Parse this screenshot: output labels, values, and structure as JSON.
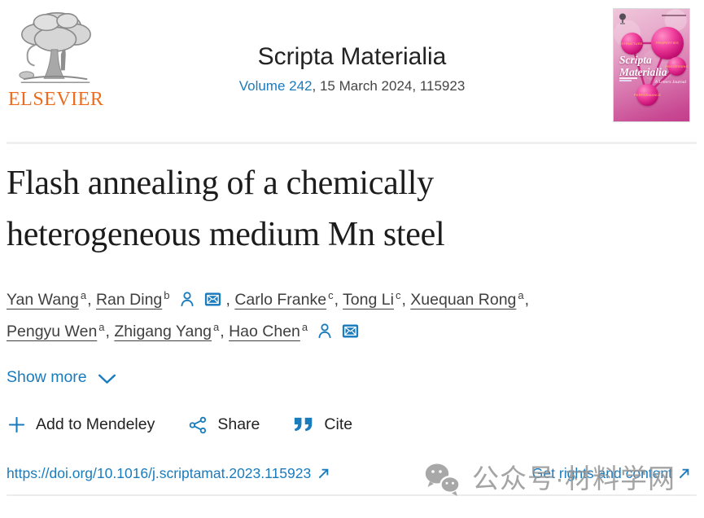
{
  "header": {
    "publisher_wordmark": "ELSEVIER",
    "journal_title": "Scripta Materialia",
    "volume_link": "Volume 242",
    "issue_suffix": ", 15 March 2024, 115923",
    "cover": {
      "title_line1": "Scripta",
      "title_line2": "Materialia",
      "tagline": "A Letters Journal",
      "sphere_labels": [
        "STRUCTURE",
        "PROPERTIES",
        "PROCESSING",
        "PERFORMANCE"
      ]
    }
  },
  "article": {
    "title": "Flash annealing of a chemically heterogeneous medium Mn steel",
    "show_more_label": "Show more",
    "authors": [
      {
        "name": "Yan Wang",
        "affiliation_sup": "a",
        "has_profile_icon": false,
        "has_email_icon": false,
        "separator": ", ",
        "break_after": false
      },
      {
        "name": "Ran Ding",
        "affiliation_sup": "b",
        "has_profile_icon": true,
        "has_email_icon": true,
        "separator": ", ",
        "break_after": false
      },
      {
        "name": "Carlo Franke",
        "affiliation_sup": "c",
        "has_profile_icon": false,
        "has_email_icon": false,
        "separator": ", ",
        "break_after": false
      },
      {
        "name": "Tong Li",
        "affiliation_sup": "c",
        "has_profile_icon": false,
        "has_email_icon": false,
        "separator": ", ",
        "break_after": false
      },
      {
        "name": "Xuequan Rong",
        "affiliation_sup": "a",
        "has_profile_icon": false,
        "has_email_icon": false,
        "separator": ",",
        "break_after": true
      },
      {
        "name": "Pengyu Wen",
        "affiliation_sup": "a",
        "has_profile_icon": false,
        "has_email_icon": false,
        "separator": ", ",
        "break_after": false
      },
      {
        "name": "Zhigang Yang",
        "affiliation_sup": "a",
        "has_profile_icon": false,
        "has_email_icon": false,
        "separator": ", ",
        "break_after": false
      },
      {
        "name": "Hao Chen",
        "affiliation_sup": "a",
        "has_profile_icon": true,
        "has_email_icon": true,
        "separator": "",
        "break_after": false
      }
    ]
  },
  "actions": {
    "mendeley_label": "Add to Mendeley",
    "share_label": "Share",
    "cite_label": "Cite"
  },
  "links": {
    "doi_text": "https://doi.org/10.1016/j.scriptamat.2023.115923",
    "rights_text": "Get rights and content"
  },
  "watermark": {
    "text": "公众号·材料学网"
  },
  "icons": {
    "author_profile": "person-icon",
    "author_email": "envelope-icon",
    "show_more": "chevron-down-icon",
    "add": "plus-icon",
    "share": "share-nodes-icon",
    "cite": "double-quote-icon",
    "external_link": "north-east-arrow-icon",
    "watermark": "wechat-icon",
    "publisher": "elsevier-tree-icon"
  },
  "colors": {
    "link_blue": "#1a7bbd",
    "elsevier_orange": "#ec6c1f",
    "title_dark": "#1c1c1c",
    "author_gray": "#3f3f3f",
    "watermark_gray": "#949494",
    "divider_gray": "#efefef",
    "cover_magenta": "#c94b94"
  }
}
